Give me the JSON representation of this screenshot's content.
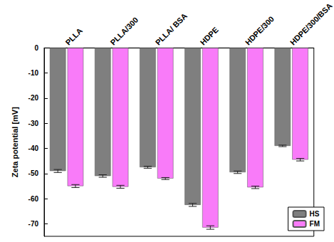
{
  "chart_data": {
    "type": "bar",
    "categories": [
      "PLLA",
      "PLLA/300",
      "PLLA/ BSA",
      "HDPE",
      "HDPE/300",
      "HDPE/300/BSA"
    ],
    "series": [
      {
        "name": "HS",
        "color": "#7f7f7f",
        "values": [
          -49,
          -51,
          -47.5,
          -62.5,
          -49.5,
          -39
        ],
        "errors": [
          0.6,
          0.5,
          0.4,
          0.6,
          0.5,
          0.3
        ]
      },
      {
        "name": "FM",
        "color": "#f97bf9",
        "values": [
          -55,
          -55.3,
          -52,
          -71.5,
          -55.5,
          -44.5
        ],
        "errors": [
          0.6,
          0.6,
          0.4,
          0.7,
          0.5,
          0.5
        ]
      }
    ],
    "y_label": "Zeta potential [mV]",
    "ylim": [
      -75,
      0
    ],
    "yticks": [
      -70,
      -60,
      -50,
      -40,
      -30,
      -20,
      -10,
      0
    ],
    "legend": "lower right",
    "grid": false
  }
}
